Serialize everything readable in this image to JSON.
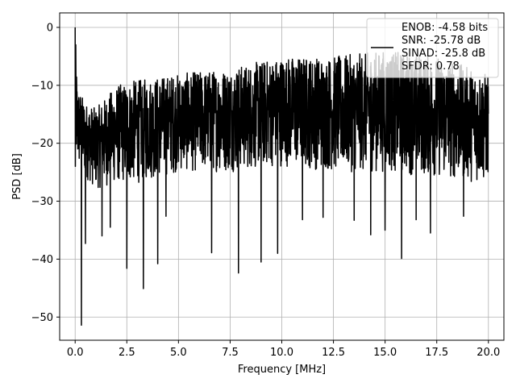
{
  "chart_data": {
    "type": "line",
    "xlabel": "Frequency [MHz]",
    "ylabel": "PSD [dB]",
    "xlim": [
      -0.75,
      20.75
    ],
    "ylim": [
      -54,
      2.5
    ],
    "xticks": [
      0.0,
      2.5,
      5.0,
      7.5,
      10.0,
      12.5,
      15.0,
      17.5,
      20.0
    ],
    "xtick_labels": [
      "0.0",
      "2.5",
      "5.0",
      "7.5",
      "10.0",
      "12.5",
      "15.0",
      "17.5",
      "20.0"
    ],
    "yticks": [
      0,
      -10,
      -20,
      -30,
      -40,
      -50
    ],
    "ytick_labels": [
      "0",
      "−10",
      "−20",
      "−30",
      "−40",
      "−50"
    ],
    "grid": true,
    "legend_position": "upper-right",
    "legend_lines": [
      "ENOB: -4.58 bits",
      "SNR: -25.78 dB",
      "SINAD: -25.8 dB",
      "SFDR: 0.78"
    ],
    "series": [
      {
        "color": "#000000",
        "x_start": 0.0,
        "x_end": 20.0,
        "points": 2048,
        "envelope_upper": [
          [
            0.0,
            0.0
          ],
          [
            0.1,
            -10
          ],
          [
            0.5,
            -13
          ],
          [
            1.0,
            -14
          ],
          [
            2.0,
            -10
          ],
          [
            3.0,
            -9
          ],
          [
            5.0,
            -8
          ],
          [
            7.5,
            -7
          ],
          [
            10.0,
            -5
          ],
          [
            12.5,
            -5
          ],
          [
            15.0,
            -4
          ],
          [
            17.5,
            -5
          ],
          [
            20.0,
            -8
          ]
        ],
        "envelope_lower": [
          [
            0.0,
            -24
          ],
          [
            1.0,
            -28
          ],
          [
            2.0,
            -27
          ],
          [
            3.0,
            -27
          ],
          [
            5.0,
            -25
          ],
          [
            7.5,
            -25
          ],
          [
            10.0,
            -24
          ],
          [
            12.5,
            -25
          ],
          [
            15.0,
            -25
          ],
          [
            17.5,
            -26
          ],
          [
            20.0,
            -27
          ]
        ],
        "notable_dips": [
          [
            0.3,
            -51.4
          ],
          [
            0.5,
            -37.3
          ],
          [
            1.3,
            -36
          ],
          [
            1.7,
            -34.5
          ],
          [
            2.5,
            -41.6
          ],
          [
            3.3,
            -45.1
          ],
          [
            4.0,
            -40.8
          ],
          [
            4.4,
            -32.6
          ],
          [
            6.6,
            -38.9
          ],
          [
            7.9,
            -42.4
          ],
          [
            9.0,
            -40.5
          ],
          [
            9.8,
            -39
          ],
          [
            11.0,
            -33.2
          ],
          [
            12.0,
            -32.8
          ],
          [
            13.5,
            -33.3
          ],
          [
            14.3,
            -35.8
          ],
          [
            15.0,
            -35
          ],
          [
            15.8,
            -39.9
          ],
          [
            16.5,
            -33.2
          ],
          [
            17.2,
            -35.5
          ],
          [
            18.8,
            -32.6
          ]
        ]
      }
    ]
  }
}
